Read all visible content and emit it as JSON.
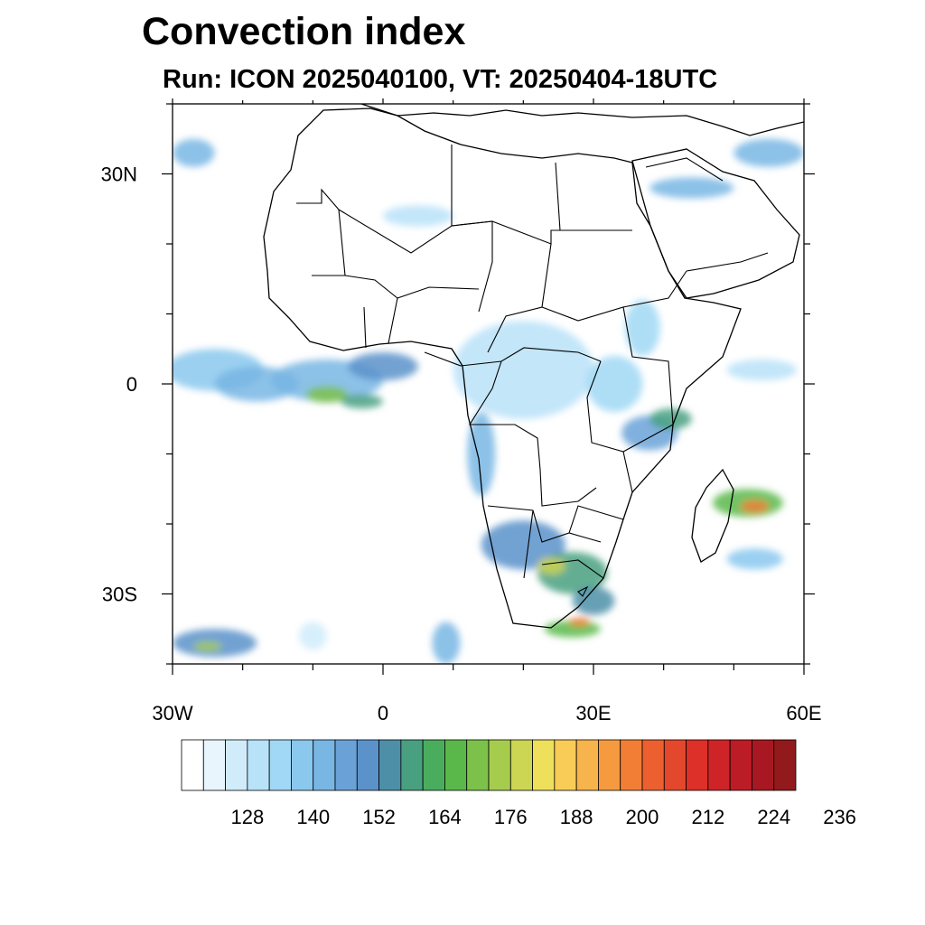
{
  "title": "Convection index",
  "subtitle": "Run: ICON 2025040100,  VT: 20250404-18UTC",
  "map": {
    "lon_range": [
      -30,
      60
    ],
    "lat_range": [
      -40,
      40
    ],
    "lon_ticks": [
      {
        "value": -30,
        "label": "30W"
      },
      {
        "value": 0,
        "label": "0"
      },
      {
        "value": 30,
        "label": "30E"
      },
      {
        "value": 60,
        "label": "60E"
      }
    ],
    "lat_ticks": [
      {
        "value": 30,
        "label": "30N"
      },
      {
        "value": 0,
        "label": "0"
      },
      {
        "value": -30,
        "label": "30S"
      }
    ]
  },
  "colorbar": {
    "colors": [
      "#ffffff",
      "#e8f5fd",
      "#d0ecfb",
      "#b8e2f8",
      "#a0d8f5",
      "#8ac8ee",
      "#78b6e4",
      "#6aa2d8",
      "#5b92ca",
      "#4e8fa8",
      "#48a080",
      "#4aad5e",
      "#5ab84a",
      "#7cc24a",
      "#a6cc4e",
      "#ccd652",
      "#eee05a",
      "#f8cc56",
      "#f8b44c",
      "#f69a40",
      "#f27e36",
      "#ec6030",
      "#e4482c",
      "#dc3028",
      "#ce2428",
      "#bc1c26",
      "#a81822",
      "#921a1c"
    ],
    "labels": [
      "128",
      "140",
      "152",
      "164",
      "176",
      "188",
      "200",
      "212",
      "224",
      "236"
    ]
  },
  "blobs": [
    {
      "cx": -27,
      "cy": 33,
      "rx": 3,
      "ry": 2,
      "level": 6
    },
    {
      "cx": -24,
      "cy": 2,
      "rx": 7,
      "ry": 3,
      "level": 5
    },
    {
      "cx": -18,
      "cy": 0,
      "rx": 6,
      "ry": 2.5,
      "level": 6
    },
    {
      "cx": -8,
      "cy": 0.5,
      "rx": 8,
      "ry": 3,
      "level": 6
    },
    {
      "cx": -8,
      "cy": -1.5,
      "rx": 3,
      "ry": 1.2,
      "level": 13
    },
    {
      "cx": 0,
      "cy": 2.5,
      "rx": 5,
      "ry": 2,
      "level": 8
    },
    {
      "cx": -3,
      "cy": -2.5,
      "rx": 3,
      "ry": 1,
      "level": 10
    },
    {
      "cx": 20,
      "cy": 2,
      "rx": 10,
      "ry": 7,
      "level": 3
    },
    {
      "cx": 14,
      "cy": -10,
      "rx": 2,
      "ry": 6,
      "level": 6
    },
    {
      "cx": 33,
      "cy": 0,
      "rx": 4,
      "ry": 4,
      "level": 4
    },
    {
      "cx": 38,
      "cy": -7,
      "rx": 4,
      "ry": 2.5,
      "level": 7
    },
    {
      "cx": 41,
      "cy": -5,
      "rx": 3,
      "ry": 1.5,
      "level": 10
    },
    {
      "cx": 37,
      "cy": 8,
      "rx": 2.5,
      "ry": 4,
      "level": 4
    },
    {
      "cx": 44,
      "cy": 28,
      "rx": 6,
      "ry": 1.5,
      "level": 6
    },
    {
      "cx": 55,
      "cy": 33,
      "rx": 5,
      "ry": 2,
      "level": 6
    },
    {
      "cx": 5,
      "cy": 24,
      "rx": 5,
      "ry": 1.5,
      "level": 3
    },
    {
      "cx": 52,
      "cy": -17,
      "rx": 5,
      "ry": 2,
      "level": 12
    },
    {
      "cx": 53,
      "cy": -17.5,
      "rx": 2,
      "ry": 0.9,
      "level": 20
    },
    {
      "cx": 53,
      "cy": -25,
      "rx": 4,
      "ry": 1.5,
      "level": 5
    },
    {
      "cx": 54,
      "cy": 2,
      "rx": 5,
      "ry": 1.5,
      "level": 3
    },
    {
      "cx": 20,
      "cy": -23,
      "rx": 6,
      "ry": 3.5,
      "level": 8
    },
    {
      "cx": 27,
      "cy": -27,
      "rx": 5,
      "ry": 3,
      "level": 10
    },
    {
      "cx": 24,
      "cy": -26,
      "rx": 2,
      "ry": 1.2,
      "level": 15
    },
    {
      "cx": 30,
      "cy": -31,
      "rx": 3,
      "ry": 2,
      "level": 9
    },
    {
      "cx": 27,
      "cy": -35,
      "rx": 4,
      "ry": 1.2,
      "level": 12
    },
    {
      "cx": 28,
      "cy": -34,
      "rx": 1.5,
      "ry": 0.6,
      "level": 20
    },
    {
      "cx": -24,
      "cy": -37,
      "rx": 6,
      "ry": 2,
      "level": 8
    },
    {
      "cx": -25,
      "cy": -37.5,
      "rx": 2,
      "ry": 0.7,
      "level": 14
    },
    {
      "cx": 9,
      "cy": -37,
      "rx": 2,
      "ry": 3,
      "level": 6
    },
    {
      "cx": -10,
      "cy": -36,
      "rx": 2,
      "ry": 2,
      "level": 2
    }
  ]
}
